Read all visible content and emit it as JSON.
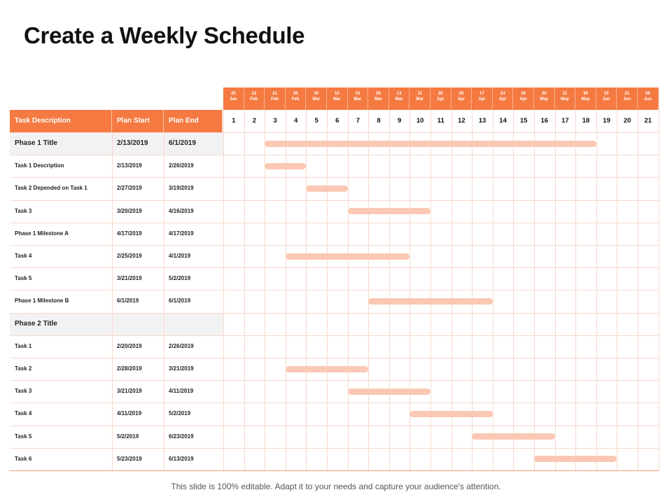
{
  "title": "Create a Weekly Schedule",
  "footer": "This slide is 100% editable. Adapt it to your needs and capture your audience's attention.",
  "columns": {
    "task": "Task Description",
    "start": "Plan Start",
    "end": "Plan End"
  },
  "weeks": [
    {
      "num": "1",
      "day": "20",
      "mon": "Jan"
    },
    {
      "num": "2",
      "day": "22",
      "mon": "Feb"
    },
    {
      "num": "3",
      "day": "21",
      "mon": "Feb"
    },
    {
      "num": "4",
      "day": "30",
      "mon": "Feb"
    },
    {
      "num": "5",
      "day": "10",
      "mon": "Mar"
    },
    {
      "num": "6",
      "day": "12",
      "mon": "Mar"
    },
    {
      "num": "7",
      "day": "15",
      "mon": "Mar"
    },
    {
      "num": "8",
      "day": "25",
      "mon": "Mar"
    },
    {
      "num": "9",
      "day": "13",
      "mon": "Mar"
    },
    {
      "num": "10",
      "day": "11",
      "mon": "Mar"
    },
    {
      "num": "11",
      "day": "26",
      "mon": "Apr"
    },
    {
      "num": "12",
      "day": "29",
      "mon": "Apr"
    },
    {
      "num": "13",
      "day": "17",
      "mon": "Apr"
    },
    {
      "num": "14",
      "day": "24",
      "mon": "Apr"
    },
    {
      "num": "15",
      "day": "16",
      "mon": "Apr"
    },
    {
      "num": "16",
      "day": "20",
      "mon": "May"
    },
    {
      "num": "17",
      "day": "11",
      "mon": "May"
    },
    {
      "num": "18",
      "day": "30",
      "mon": "May"
    },
    {
      "num": "19",
      "day": "10",
      "mon": "Jun"
    },
    {
      "num": "20",
      "day": "21",
      "mon": "Jun"
    },
    {
      "num": "21",
      "day": "28",
      "mon": "Jun"
    }
  ],
  "rows": [
    {
      "task": "Phase 1 Title",
      "start": "2/13/2019",
      "end": "6/1/2019",
      "phase": true,
      "bar": [
        3,
        18
      ]
    },
    {
      "task": "Task 1 Description",
      "start": "2/13/2019",
      "end": "2/26/2019",
      "phase": false,
      "bar": [
        3,
        4
      ]
    },
    {
      "task": "Task 2 Depended on Task 1",
      "start": "2/27/2019",
      "end": "3/19/2019",
      "phase": false,
      "bar": [
        5,
        6
      ]
    },
    {
      "task": "Task 3",
      "start": "3/20/2019",
      "end": "4/16/2019",
      "phase": false,
      "bar": [
        7,
        10
      ]
    },
    {
      "task": "Phase 1 Milestone  A",
      "start": "4/17/2019",
      "end": "4/17/2019",
      "phase": false,
      "bar": null
    },
    {
      "task": "Task 4",
      "start": "2/25/2019",
      "end": "4/1/2019",
      "phase": false,
      "bar": [
        4,
        9
      ]
    },
    {
      "task": "Task 5",
      "start": "3/21/2019",
      "end": "5/2/2019",
      "phase": false,
      "bar": null
    },
    {
      "task": "Phase 1 Milestone  B",
      "start": "6/1/2019",
      "end": "6/1/2019",
      "phase": false,
      "bar": [
        8,
        13
      ]
    },
    {
      "task": "Phase 2 Title",
      "start": "",
      "end": "",
      "phase": true,
      "bar": null
    },
    {
      "task": "Task 1",
      "start": "2/20/2019",
      "end": "2/26/2019",
      "phase": false,
      "bar": null
    },
    {
      "task": "Task 2",
      "start": "2/28/2019",
      "end": "3/21/2019",
      "phase": false,
      "bar": [
        4,
        7
      ]
    },
    {
      "task": "Task 3",
      "start": "3/21/2019",
      "end": "4/11/2019",
      "phase": false,
      "bar": [
        7,
        10
      ]
    },
    {
      "task": "Task 4",
      "start": "4/11/2019",
      "end": "5/2/2019",
      "phase": false,
      "bar": [
        10,
        13
      ]
    },
    {
      "task": "Task 5",
      "start": "5/2/2019",
      "end": "6/23/2019",
      "phase": false,
      "bar": [
        13,
        16
      ]
    },
    {
      "task": "Task 6",
      "start": "5/23/2019",
      "end": "6/13/2019",
      "phase": false,
      "bar": [
        16,
        19
      ]
    }
  ]
}
